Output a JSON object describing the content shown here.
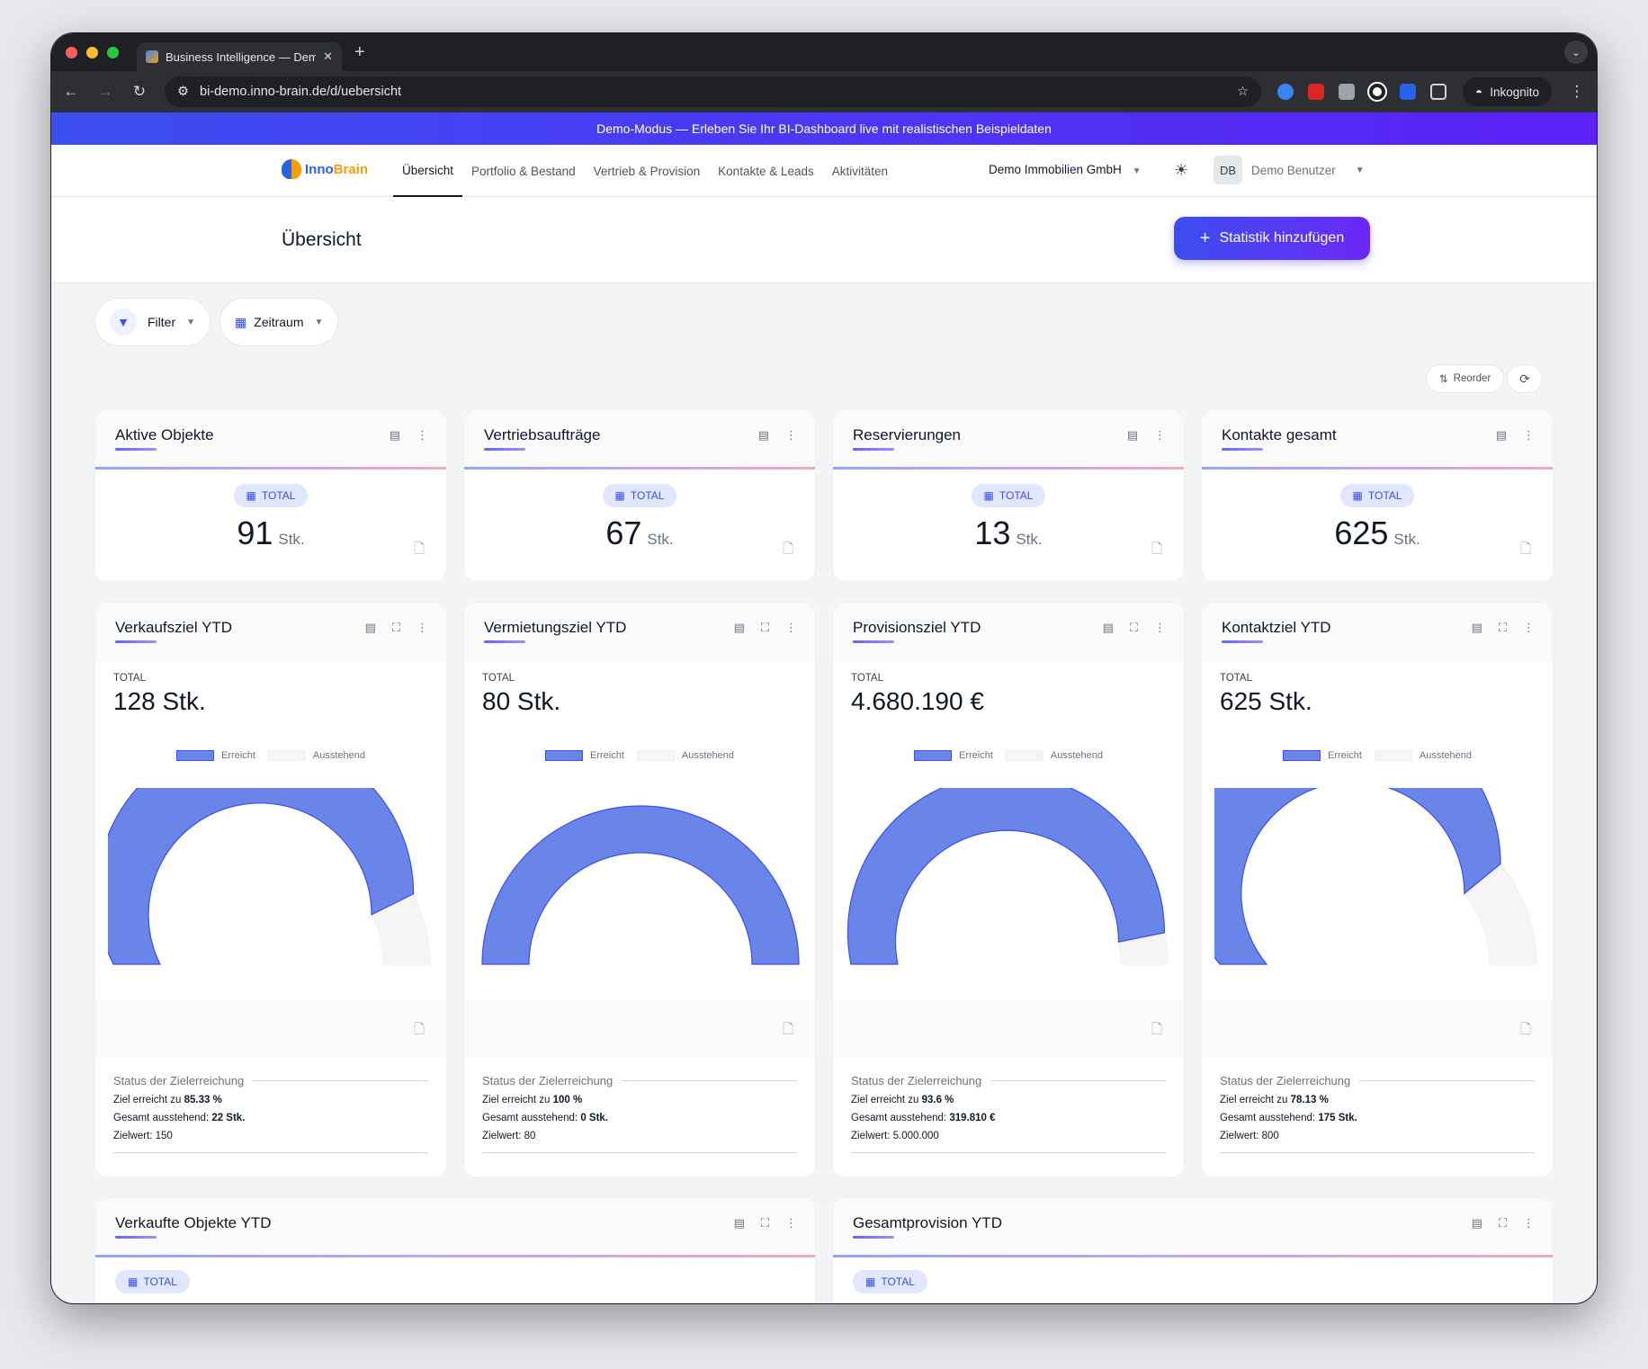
{
  "browser": {
    "tab_title": "Business Intelligence — Demo",
    "url": "bi-demo.inno-brain.de/d/uebersicht",
    "incognito_label": "Inkognito"
  },
  "banner": "Demo-Modus — Erleben Sie Ihr BI-Dashboard live mit realistischen Beispieldaten",
  "nav": {
    "logo_a": "Inno",
    "logo_b": "Brain",
    "items": [
      "Übersicht",
      "Portfolio & Bestand",
      "Vertrieb & Provision",
      "Kontakte & Leads",
      "Aktivitäten"
    ],
    "company": "Demo Immobilien GmbH",
    "user_initials": "DB",
    "user_name": "Demo Benutzer"
  },
  "header": {
    "title": "Übersicht",
    "add_button": "Statistik hinzufügen"
  },
  "toolbar": {
    "filter": "Filter",
    "period": "Zeitraum",
    "reorder": "Reorder"
  },
  "kpis": [
    {
      "title": "Aktive Objekte",
      "badge": "TOTAL",
      "value": "91",
      "unit": "Stk."
    },
    {
      "title": "Vertriebsaufträge",
      "badge": "TOTAL",
      "value": "67",
      "unit": "Stk."
    },
    {
      "title": "Reservierungen",
      "badge": "TOTAL",
      "value": "13",
      "unit": "Stk."
    },
    {
      "title": "Kontakte gesamt",
      "badge": "TOTAL",
      "value": "625",
      "unit": "Stk."
    }
  ],
  "goals": [
    {
      "title": "Verkaufsziel YTD",
      "total_label": "TOTAL",
      "total": "128 Stk.",
      "legend_a": "Erreicht",
      "legend_b": "Ausstehend",
      "fraction": 0.8533,
      "status_title": "Status der Zielerreichung",
      "l1": "Ziel erreicht zu ",
      "v1": "85.33 %",
      "l2": "Gesamt ausstehend: ",
      "v2": "22 Stk.",
      "l3": "Zielwert: 150"
    },
    {
      "title": "Vermietungsziel YTD",
      "total_label": "TOTAL",
      "total": "80 Stk.",
      "legend_a": "Erreicht",
      "legend_b": "Ausstehend",
      "fraction": 1.0,
      "status_title": "Status der Zielerreichung",
      "l1": "Ziel erreicht zu ",
      "v1": "100 %",
      "l2": "Gesamt ausstehend: ",
      "v2": "0 Stk.",
      "l3": "Zielwert: 80"
    },
    {
      "title": "Provisionsziel YTD",
      "total_label": "TOTAL",
      "total": "4.680.190 €",
      "legend_a": "Erreicht",
      "legend_b": "Ausstehend",
      "fraction": 0.936,
      "status_title": "Status der Zielerreichung",
      "l1": "Ziel erreicht zu ",
      "v1": "93.6 %",
      "l2": "Gesamt ausstehend: ",
      "v2": "319.810 €",
      "l3": "Zielwert: 5.000.000"
    },
    {
      "title": "Kontaktziel YTD",
      "total_label": "TOTAL",
      "total": "625 Stk.",
      "legend_a": "Erreicht",
      "legend_b": "Ausstehend",
      "fraction": 0.7813,
      "status_title": "Status der Zielerreichung",
      "l1": "Ziel erreicht zu ",
      "v1": "78.13 %",
      "l2": "Gesamt ausstehend: ",
      "v2": "175 Stk.",
      "l3": "Zielwert: 800"
    }
  ],
  "bottom": [
    {
      "title": "Verkaufte Objekte YTD",
      "badge": "TOTAL"
    },
    {
      "title": "Gesamtprovision YTD",
      "badge": "TOTAL"
    }
  ],
  "colors": {
    "achieved": "#6a85e8",
    "pending": "#f5f5f6",
    "accent": "#3b4ef0"
  }
}
